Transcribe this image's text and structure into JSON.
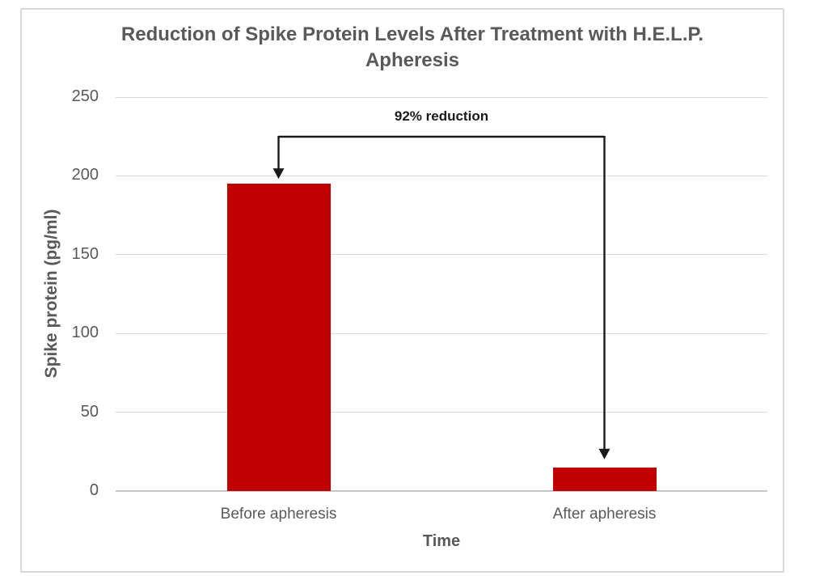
{
  "chart_data": {
    "type": "bar",
    "title": "Reduction of Spike Protein Levels After Treatment with H.E.L.P. Apheresis",
    "categories": [
      "Before apheresis",
      "After apheresis"
    ],
    "values": [
      195,
      15
    ],
    "xlabel": "Time",
    "ylabel": "Spike protein (pg/ml)",
    "ylim": [
      0,
      250
    ],
    "yticks": [
      0,
      50,
      100,
      150,
      200,
      250
    ],
    "grid": true,
    "legend": "none",
    "annotation": {
      "label": "92% reduction",
      "from_category": "Before apheresis",
      "to_category": "After apheresis"
    }
  },
  "colors": {
    "bar": "#c00000",
    "text": "#595959",
    "gridline": "#d9d9d9",
    "axis_line": "#c6c6c6",
    "border": "#d9d9d9",
    "annotation": "#1a1a1a",
    "background": "#ffffff"
  }
}
